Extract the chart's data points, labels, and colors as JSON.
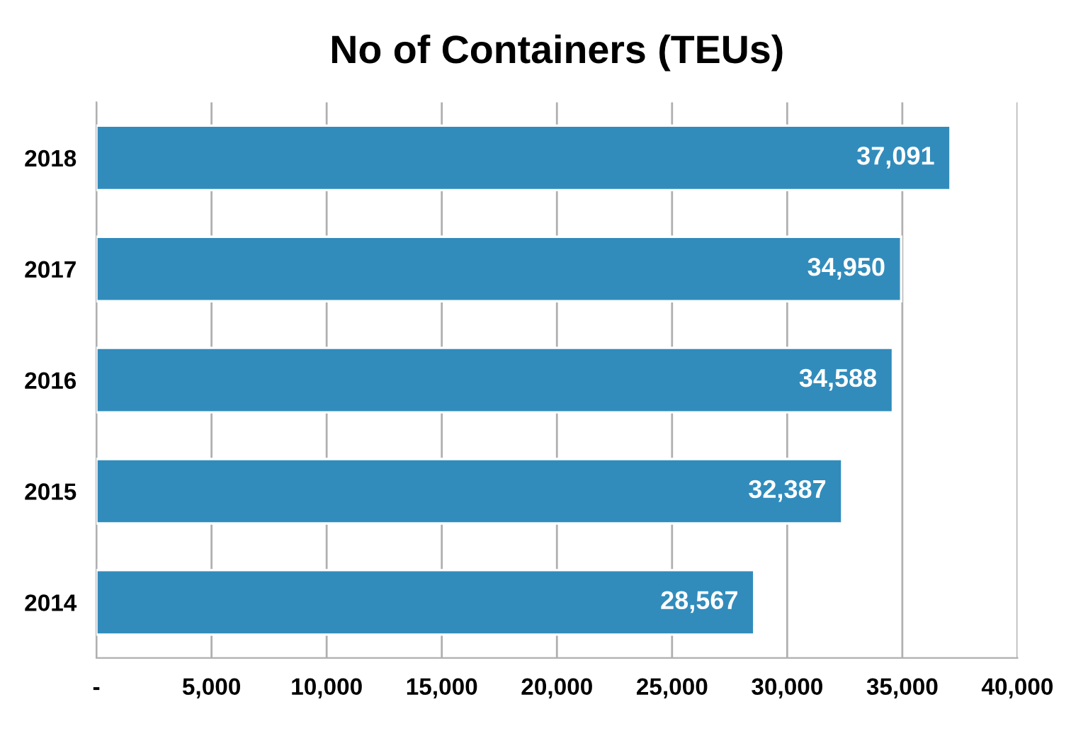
{
  "chart_data": {
    "type": "bar",
    "orientation": "horizontal",
    "title": "No of Containers (TEUs)",
    "categories": [
      "2018",
      "2017",
      "2016",
      "2015",
      "2014"
    ],
    "values": [
      37091,
      34950,
      34588,
      32387,
      28567
    ],
    "value_labels": [
      "37,091",
      "34,950",
      "34,588",
      "32,387",
      "28,567"
    ],
    "color": "#318cbc",
    "xlim": [
      0,
      40000
    ],
    "xticks": [
      {
        "value": 0,
        "label": "-"
      },
      {
        "value": 5000,
        "label": "5,000"
      },
      {
        "value": 10000,
        "label": "10,000"
      },
      {
        "value": 15000,
        "label": "15,000"
      },
      {
        "value": 20000,
        "label": "20,000"
      },
      {
        "value": 25000,
        "label": "25,000"
      },
      {
        "value": 30000,
        "label": "30,000"
      },
      {
        "value": 35000,
        "label": "35,000"
      },
      {
        "value": 40000,
        "label": "40,000"
      }
    ],
    "grid": "x",
    "legend": false
  }
}
